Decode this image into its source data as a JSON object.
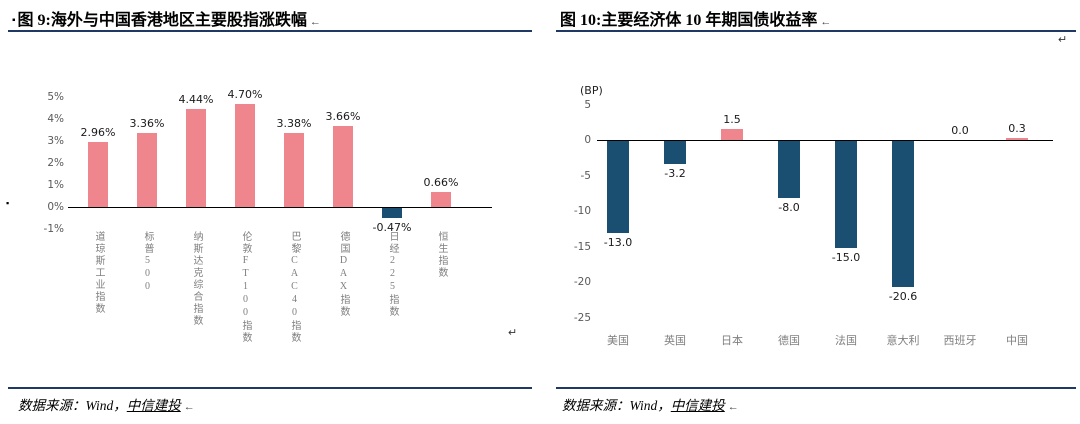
{
  "colors": {
    "positive_pink": "#F0868D",
    "negative_navy": "#1B4F72",
    "rule_navy": "#1F3864",
    "category_gray": "#7F7F7F"
  },
  "marks": {
    "square": "▪",
    "return_arrow": "←",
    "line_break": "↵"
  },
  "panels": {
    "left": {
      "source_prefix": "数据来源：Wind，",
      "source_link": "中信建投"
    },
    "right": {
      "source_prefix": "数据来源：Wind，",
      "source_link": "中信建投"
    }
  },
  "chart_data": [
    {
      "type": "bar",
      "title": "图 9:海外与中国香港地区主要股指涨跌幅",
      "categories": [
        "道琼斯工业指数",
        "标普500",
        "纳斯达克综合指数",
        "伦敦FT100指数",
        "巴黎CAC40指数",
        "德国DAX指数",
        "日经225指数",
        "恒生指数"
      ],
      "values": [
        2.96,
        3.36,
        4.44,
        4.7,
        3.38,
        3.66,
        -0.47,
        0.66
      ],
      "labels": [
        "2.96%",
        "3.36%",
        "4.44%",
        "4.70%",
        "3.38%",
        "3.66%",
        "-0.47%",
        "0.66%"
      ],
      "ylim": [
        -1,
        5
      ],
      "yticks": [
        "5%",
        "4%",
        "3%",
        "2%",
        "1%",
        "0%",
        "-1%"
      ],
      "grid": false,
      "legend": false,
      "positive_color": "#F0868D",
      "negative_color": "#1B4F72"
    },
    {
      "type": "bar",
      "title": "图 10:主要经济体 10 年期国债收益率",
      "unit": "(BP)",
      "categories": [
        "美国",
        "英国",
        "日本",
        "德国",
        "法国",
        "意大利",
        "西班牙",
        "中国"
      ],
      "values": [
        -13.0,
        -3.2,
        1.5,
        -8.0,
        -15.0,
        -20.6,
        0.0,
        0.3
      ],
      "labels": [
        "-13.0",
        "-3.2",
        "1.5",
        "-8.0",
        "-15.0",
        "-20.6",
        "0.0",
        "0.3"
      ],
      "ylim": [
        -25,
        5
      ],
      "yticks": [
        "5",
        "0",
        "-5",
        "-10",
        "-15",
        "-20",
        "-25"
      ],
      "grid": false,
      "legend": false,
      "positive_color": "#F0868D",
      "negative_color": "#1B4F72"
    }
  ]
}
